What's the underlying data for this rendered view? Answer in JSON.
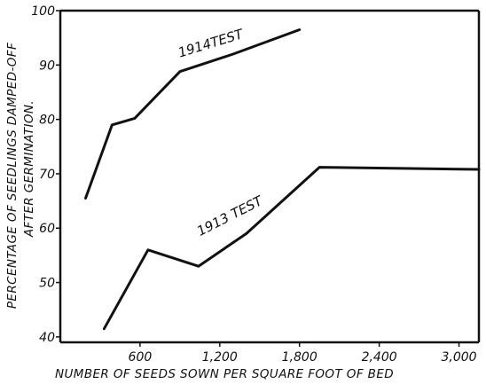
{
  "chart_data": {
    "type": "line",
    "xlabel": "NUMBER OF SEEDS SOWN PER SQUARE FOOT OF BED",
    "ylabel_line1": "PERCENTAGE OF SEEDLINGS DAMPED-OFF",
    "ylabel_line2": "AFTER GERMINATION.",
    "xlim": [
      0,
      3150
    ],
    "ylim": [
      39,
      100
    ],
    "xticks": [
      {
        "value": 600,
        "label": "600"
      },
      {
        "value": 1200,
        "label": "1,200"
      },
      {
        "value": 1800,
        "label": "1,800"
      },
      {
        "value": 2400,
        "label": "2,400"
      },
      {
        "value": 3000,
        "label": "3,000"
      }
    ],
    "yticks": [
      {
        "value": 40,
        "label": "40"
      },
      {
        "value": 50,
        "label": "50"
      },
      {
        "value": 60,
        "label": "60"
      },
      {
        "value": 70,
        "label": "70"
      },
      {
        "value": 80,
        "label": "80"
      },
      {
        "value": 90,
        "label": "90"
      },
      {
        "value": 100,
        "label": "100"
      }
    ],
    "grid": false,
    "series": [
      {
        "name": "1914 TEST",
        "label_text": "1914TEST",
        "label_at": {
          "x": 1140,
          "y": 93.2
        },
        "label_angle": -17,
        "x": [
          190,
          390,
          560,
          900,
          1300,
          1800
        ],
        "y": [
          65.5,
          79,
          80.2,
          88.8,
          92,
          96.5
        ]
      },
      {
        "name": "1913 TEST",
        "label_text": "1913 TEST",
        "label_at": {
          "x": 1290,
          "y": 61.5
        },
        "label_angle": -27,
        "x": [
          330,
          660,
          1040,
          1400,
          1950,
          3150
        ],
        "y": [
          41.5,
          56,
          53,
          59,
          71.2,
          70.8
        ]
      }
    ]
  }
}
